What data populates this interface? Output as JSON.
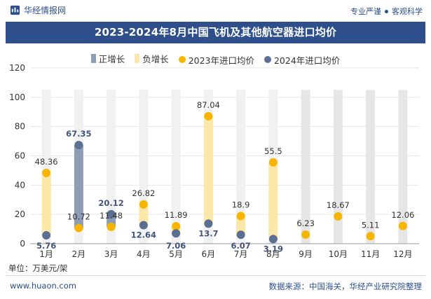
{
  "header": {
    "brand": "华经情报网",
    "slogan_left": "专业严谨",
    "slogan_right": "客观科学",
    "title": "2023-2024年8月中国飞机及其他航空器进口均价"
  },
  "footer": {
    "unit": "单位：万美元/架",
    "site": "www.huaon.com",
    "source": "数据来源：中国海关，华经产业研究院整理"
  },
  "chart_data": {
    "type": "scatter",
    "title": "2023-2024年8月中国飞机及其他航空器进口均价",
    "unit": "万美元/架",
    "categories": [
      "1月",
      "2月",
      "3月",
      "4月",
      "5月",
      "6月",
      "7月",
      "8月",
      "9月",
      "10月",
      "11月",
      "12月"
    ],
    "ylim": [
      0,
      120
    ],
    "yticks": [
      0,
      20,
      40,
      60,
      80,
      100,
      120
    ],
    "legend": [
      "正增长",
      "负增长",
      "2023年进口均价",
      "2024年进口均价"
    ],
    "colors": {
      "positive": "#8e9cb6",
      "negative": "#fbe8a8",
      "neutral_bar": "#e6e6e6",
      "y2023": "#f7b500",
      "y2024": "#5b6f93",
      "label2023": "#333333",
      "label2024": "#41547c",
      "grid": "#e6e6e6"
    },
    "series": [
      {
        "name": "2023年进口均价",
        "values": [
          48.36,
          10.72,
          11.48,
          26.82,
          11.89,
          87.04,
          18.9,
          55.5,
          6.23,
          18.67,
          5.11,
          12.06
        ]
      },
      {
        "name": "2024年进口均价",
        "values": [
          5.76,
          67.35,
          20.12,
          12.64,
          7.06,
          13.7,
          6.07,
          3.19,
          null,
          null,
          null,
          null
        ]
      }
    ]
  }
}
